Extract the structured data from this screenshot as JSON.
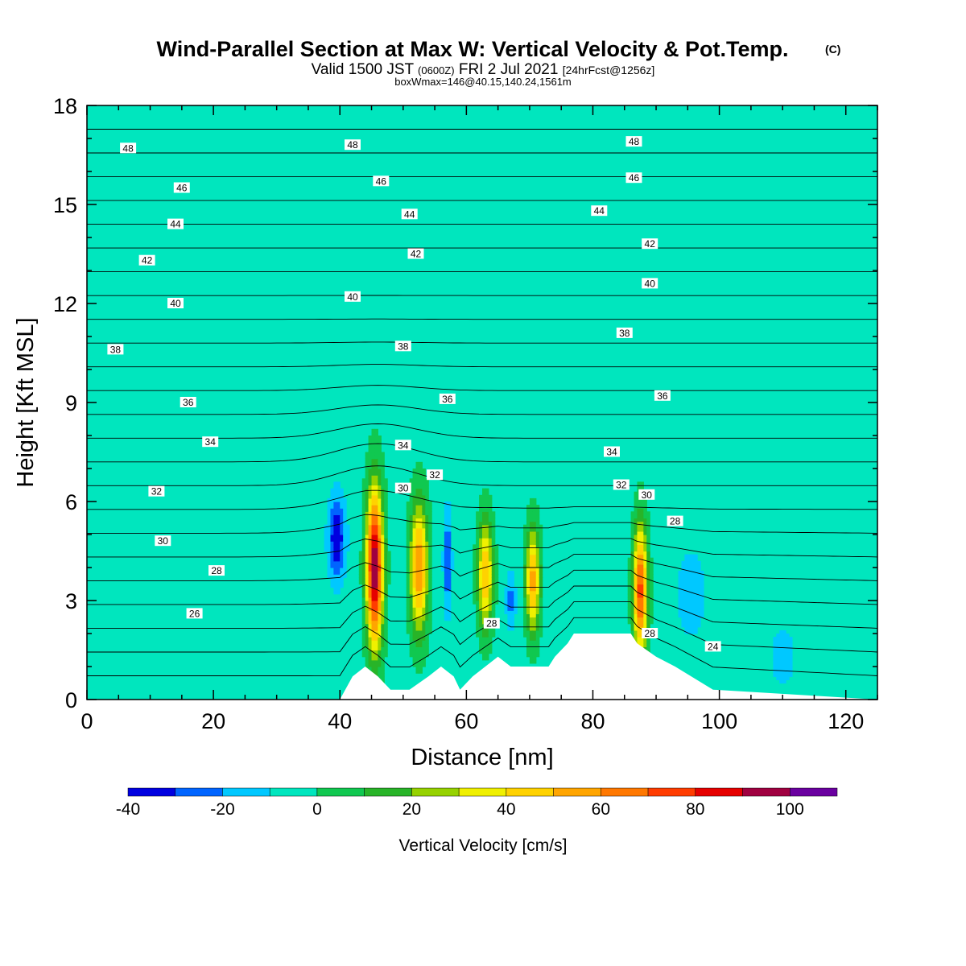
{
  "header": {
    "title": "Wind-Parallel Section at Max W: Vertical Velocity & Pot.Temp.",
    "copyright": "(C)",
    "valid_prefix": "Valid 1500 JST",
    "utc": "(0600Z)",
    "valid_date": "FRI 2 Jul 2021",
    "fcst": "[24hrFcst@1256z]",
    "boxwmax": "boxWmax=146@40.15,140.24,1561m"
  },
  "chart_data": {
    "type": "heatmap",
    "title": "Wind-Parallel Section at Max W: Vertical Velocity & Pot.Temp.",
    "xlabel": "Distance [nm]",
    "ylabel": "Height [Kft MSL]",
    "xlim": [
      0,
      125
    ],
    "ylim": [
      0,
      18
    ],
    "x_ticks": [
      0,
      20,
      40,
      60,
      80,
      100,
      120
    ],
    "y_ticks": [
      0,
      3,
      6,
      9,
      12,
      15,
      18
    ],
    "colorbar": {
      "label": "Vertical Velocity [cm/s]",
      "tick_values": [
        -40,
        -20,
        0,
        20,
        40,
        60,
        80,
        100
      ],
      "tick_labels": [
        "-40",
        "-20",
        "0",
        "20",
        "40",
        "60",
        "80",
        "100"
      ],
      "bins": [
        -40,
        -30,
        -20,
        -10,
        0,
        10,
        20,
        30,
        40,
        50,
        60,
        70,
        80,
        90,
        100,
        110
      ],
      "colors": [
        "#0000e0",
        "#0064ff",
        "#00c8ff",
        "#00e6be",
        "#10c850",
        "#28b428",
        "#96d200",
        "#f0f000",
        "#ffd200",
        "#ffa500",
        "#ff7800",
        "#ff3c00",
        "#e60000",
        "#a00040",
        "#6a00a0"
      ]
    },
    "background_value_cm_s": -5,
    "terrain_kft": {
      "x": [
        0,
        40,
        42,
        44,
        46,
        48,
        51,
        54,
        56,
        58,
        59,
        61,
        63,
        65,
        67,
        69,
        73,
        74,
        76,
        77,
        78,
        86,
        87,
        90,
        93,
        99,
        125
      ],
      "h": [
        0,
        0,
        0.7,
        1.0,
        0.7,
        0.3,
        0.3,
        0.7,
        1.0,
        0.7,
        0.3,
        0.7,
        1.0,
        1.3,
        1.0,
        1.0,
        1.0,
        1.3,
        1.7,
        2.0,
        2.0,
        2.0,
        1.7,
        1.3,
        1.0,
        0.3,
        0
      ]
    },
    "vertical_velocity_cells": [
      {
        "x": 45.5,
        "z": 4.0,
        "w": 100,
        "x_half_width": 1.3,
        "z_half_height": 2.4
      },
      {
        "x": 52.5,
        "z": 4.0,
        "w": 60,
        "x_half_width": 1.4,
        "z_half_height": 2.0
      },
      {
        "x": 63.0,
        "z": 3.8,
        "w": 50,
        "x_half_width": 1.2,
        "z_half_height": 1.7
      },
      {
        "x": 70.5,
        "z": 3.6,
        "w": 55,
        "x_half_width": 1.1,
        "z_half_height": 1.6
      },
      {
        "x": 87.5,
        "z": 3.3,
        "w": 75,
        "x_half_width": 1.1,
        "z_half_height": 2.0
      },
      {
        "x": 39.5,
        "z": 4.9,
        "w": -40,
        "x_half_width": 1.3,
        "z_half_height": 1.2
      },
      {
        "x": 57.0,
        "z": 4.2,
        "w": -30,
        "x_half_width": 0.6,
        "z_half_height": 1.5
      },
      {
        "x": 67.0,
        "z": 3.0,
        "w": -25,
        "x_half_width": 0.7,
        "z_half_height": 0.8
      },
      {
        "x": 95.5,
        "z": 3.2,
        "w": -15,
        "x_half_width": 2.5,
        "z_half_height": 1.5
      },
      {
        "x": 110.0,
        "z": 1.3,
        "w": -15,
        "x_half_width": 2.0,
        "z_half_height": 1.0
      }
    ],
    "potential_temperature_contour_labels": [
      {
        "value": 48,
        "x": 6.5,
        "z": 16.7
      },
      {
        "value": 46,
        "x": 15,
        "z": 15.5
      },
      {
        "value": 44,
        "x": 14,
        "z": 14.4
      },
      {
        "value": 42,
        "x": 9.5,
        "z": 13.3
      },
      {
        "value": 40,
        "x": 14,
        "z": 12.0
      },
      {
        "value": 38,
        "x": 4.5,
        "z": 10.6
      },
      {
        "value": 36,
        "x": 16,
        "z": 9.0
      },
      {
        "value": 34,
        "x": 19.5,
        "z": 7.8
      },
      {
        "value": 32,
        "x": 11,
        "z": 6.3
      },
      {
        "value": 30,
        "x": 12,
        "z": 4.8
      },
      {
        "value": 28,
        "x": 20.5,
        "z": 3.9
      },
      {
        "value": 26,
        "x": 17,
        "z": 2.6
      },
      {
        "value": 48,
        "x": 42,
        "z": 16.8
      },
      {
        "value": 46,
        "x": 46.5,
        "z": 15.7
      },
      {
        "value": 44,
        "x": 51,
        "z": 14.7
      },
      {
        "value": 42,
        "x": 52,
        "z": 13.5
      },
      {
        "value": 40,
        "x": 42,
        "z": 12.2
      },
      {
        "value": 38,
        "x": 50,
        "z": 10.7
      },
      {
        "value": 36,
        "x": 57,
        "z": 9.1
      },
      {
        "value": 34,
        "x": 50,
        "z": 7.7
      },
      {
        "value": 32,
        "x": 55,
        "z": 6.8
      },
      {
        "value": 30,
        "x": 50,
        "z": 6.4
      },
      {
        "value": 28,
        "x": 64,
        "z": 2.3
      },
      {
        "value": 48,
        "x": 86.5,
        "z": 16.9
      },
      {
        "value": 46,
        "x": 86.5,
        "z": 15.8
      },
      {
        "value": 44,
        "x": 81,
        "z": 14.8
      },
      {
        "value": 42,
        "x": 89,
        "z": 13.8
      },
      {
        "value": 40,
        "x": 89,
        "z": 12.6
      },
      {
        "value": 38,
        "x": 85,
        "z": 11.1
      },
      {
        "value": 36,
        "x": 91,
        "z": 9.2
      },
      {
        "value": 34,
        "x": 83,
        "z": 7.5
      },
      {
        "value": 32,
        "x": 84.5,
        "z": 6.5
      },
      {
        "value": 30,
        "x": 88.5,
        "z": 6.2
      },
      {
        "value": 28,
        "x": 93,
        "z": 5.4
      },
      {
        "value": 28,
        "x": 89,
        "z": 2.0
      },
      {
        "value": 24,
        "x": 99,
        "z": 1.6
      }
    ]
  }
}
